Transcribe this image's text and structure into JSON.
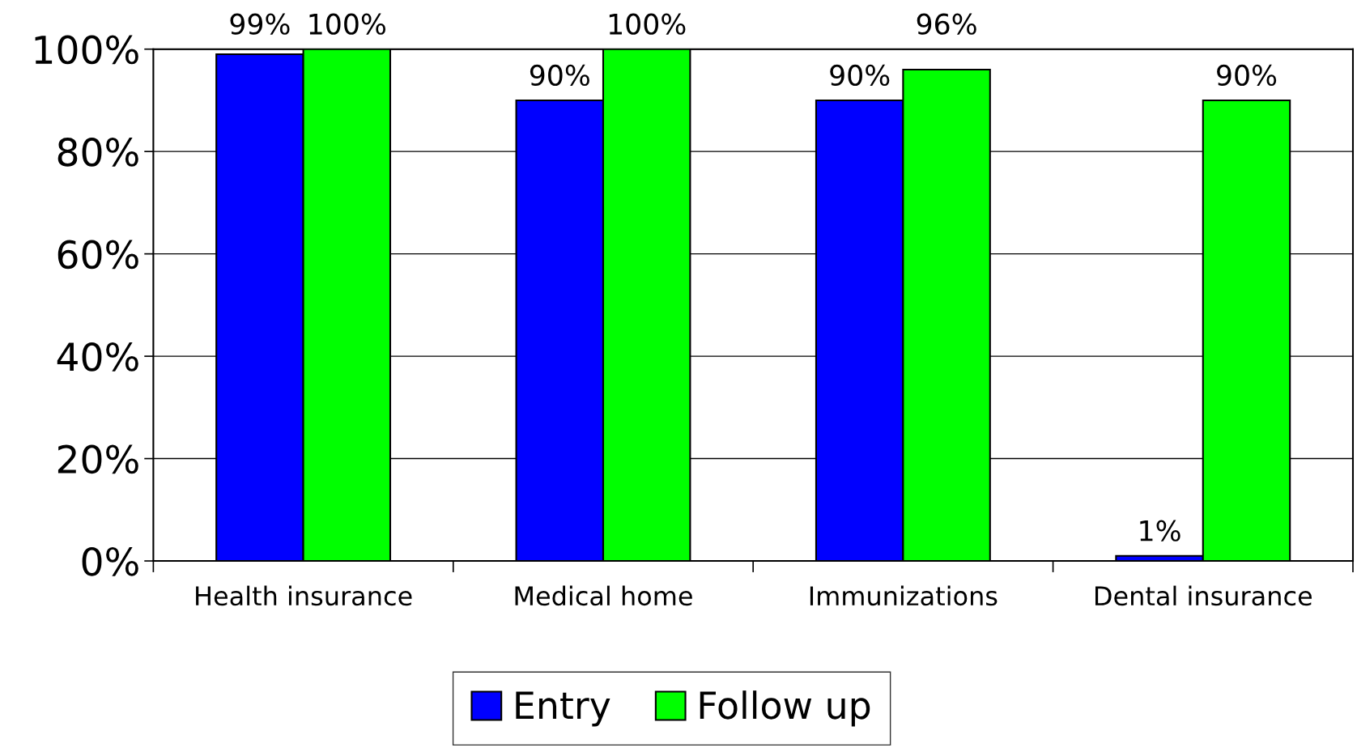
{
  "chart_data": {
    "type": "bar",
    "categories": [
      "Health insurance",
      "Medical home",
      "Immunizations",
      "Dental insurance"
    ],
    "series": [
      {
        "name": "Entry",
        "color": "#0000ff",
        "values": [
          99,
          90,
          90,
          1
        ],
        "value_labels": [
          "99%",
          "90%",
          "90%",
          "1%"
        ]
      },
      {
        "name": "Follow up",
        "color": "#00ff00",
        "values": [
          100,
          100,
          96,
          90
        ],
        "value_labels": [
          "100%",
          "100%",
          "96%",
          "90%"
        ]
      }
    ],
    "ylim": [
      0,
      100
    ],
    "yticks": [
      {
        "value": 0,
        "label": "0%"
      },
      {
        "value": 20,
        "label": "20%"
      },
      {
        "value": 40,
        "label": "40%"
      },
      {
        "value": 60,
        "label": "60%"
      },
      {
        "value": 80,
        "label": "80%"
      },
      {
        "value": 100,
        "label": "100%"
      }
    ],
    "grid": "y",
    "legend": "bottom"
  }
}
